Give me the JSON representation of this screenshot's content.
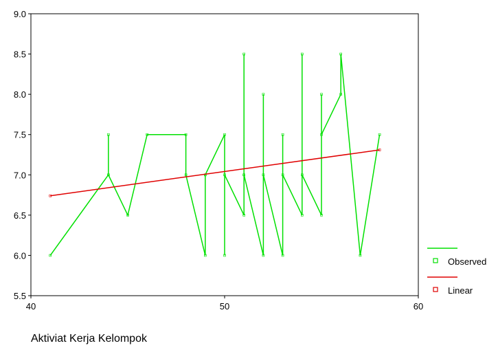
{
  "chart_data": {
    "type": "line",
    "xlabel": "Aktiviat Kerja Kelompok",
    "ylabel": "",
    "xlim": [
      40,
      60
    ],
    "ylim": [
      5.5,
      9.0
    ],
    "xticks": [
      40,
      50,
      60
    ],
    "xtick_labels": [
      "40",
      "50",
      "60"
    ],
    "yticks": [
      5.5,
      6.0,
      6.5,
      7.0,
      7.5,
      8.0,
      8.5,
      9.0
    ],
    "ytick_labels": [
      "5.5",
      "6.0",
      "6.5",
      "7.0",
      "7.5",
      "8.0",
      "8.5",
      "9.0"
    ],
    "grid": false,
    "legend_position": "right",
    "series": [
      {
        "name": "Observed",
        "color": "#00e000",
        "marker": "square",
        "x": [
          41,
          44,
          44,
          44,
          45,
          46,
          48,
          48,
          49,
          49,
          49,
          50,
          50,
          50,
          51,
          51,
          51,
          51,
          52,
          52,
          52,
          53,
          53,
          53,
          54,
          54,
          54,
          55,
          55,
          55,
          56,
          56,
          57,
          58
        ],
        "y": [
          6.0,
          7.0,
          7.5,
          7.0,
          6.5,
          7.5,
          7.5,
          7.0,
          6.0,
          7.0,
          7.0,
          7.5,
          6.0,
          7.0,
          6.5,
          8.5,
          7.0,
          7.0,
          6.0,
          8.0,
          7.0,
          6.0,
          7.5,
          7.0,
          6.5,
          8.5,
          7.0,
          6.5,
          8.0,
          7.5,
          8.0,
          8.5,
          6.0,
          7.5
        ]
      },
      {
        "name": "Linear",
        "color": "#e00000",
        "marker": "square",
        "x": [
          41,
          58
        ],
        "y": [
          6.74,
          7.31
        ]
      }
    ]
  }
}
